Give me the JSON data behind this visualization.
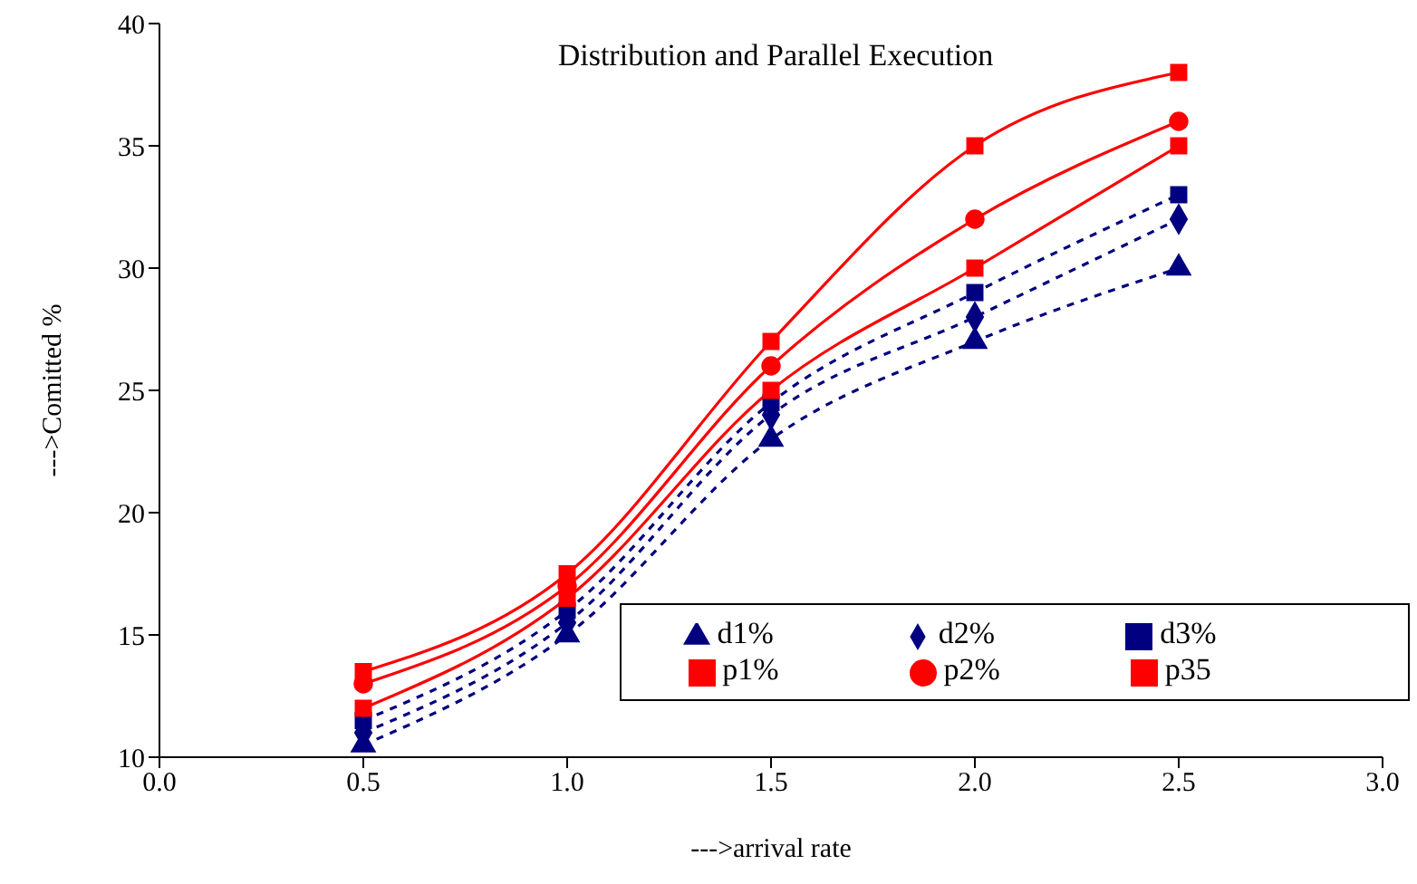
{
  "chart_data": {
    "type": "line",
    "title": "Distribution and Parallel Execution",
    "xlabel": "--->arrival rate",
    "ylabel": "--->Comitted %",
    "x": [
      0.5,
      1.0,
      1.5,
      2.0,
      2.5
    ],
    "series": [
      {
        "name": "d1%",
        "color": "#000080",
        "marker": "triangle",
        "line_style": "dashed",
        "values": [
          10.5,
          15,
          23,
          27,
          30
        ]
      },
      {
        "name": "d2%",
        "color": "#000080",
        "marker": "diamond",
        "line_style": "dashed",
        "values": [
          11,
          15.5,
          24,
          28,
          32
        ]
      },
      {
        "name": "d3%",
        "color": "#000080",
        "marker": "square",
        "line_style": "dashed",
        "values": [
          11.5,
          16,
          24.5,
          29,
          33
        ]
      },
      {
        "name": "p1%",
        "color": "#ff0000",
        "marker": "square",
        "line_style": "solid",
        "values": [
          12,
          16.5,
          25,
          30,
          35
        ]
      },
      {
        "name": "p2%",
        "color": "#ff0000",
        "marker": "circle",
        "line_style": "solid",
        "values": [
          13,
          17,
          26,
          32,
          36
        ]
      },
      {
        "name": "p35",
        "color": "#ff0000",
        "marker": "square",
        "line_style": "solid",
        "values": [
          13.5,
          17.5,
          27,
          35,
          38
        ]
      }
    ],
    "xlim": [
      0,
      3
    ],
    "xticks": [
      {
        "value": 0,
        "label": "0.0"
      },
      {
        "value": 0.5,
        "label": "0.5"
      },
      {
        "value": 1,
        "label": "1.0"
      },
      {
        "value": 1.5,
        "label": "1.5"
      },
      {
        "value": 2,
        "label": "2.0"
      },
      {
        "value": 2.5,
        "label": "2.5"
      },
      {
        "value": 3,
        "label": "3.0"
      }
    ],
    "ylim": [
      10,
      40
    ],
    "yticks": [
      10,
      15,
      20,
      25,
      30,
      35,
      40
    ],
    "grid": false,
    "legend": "bottom right"
  }
}
